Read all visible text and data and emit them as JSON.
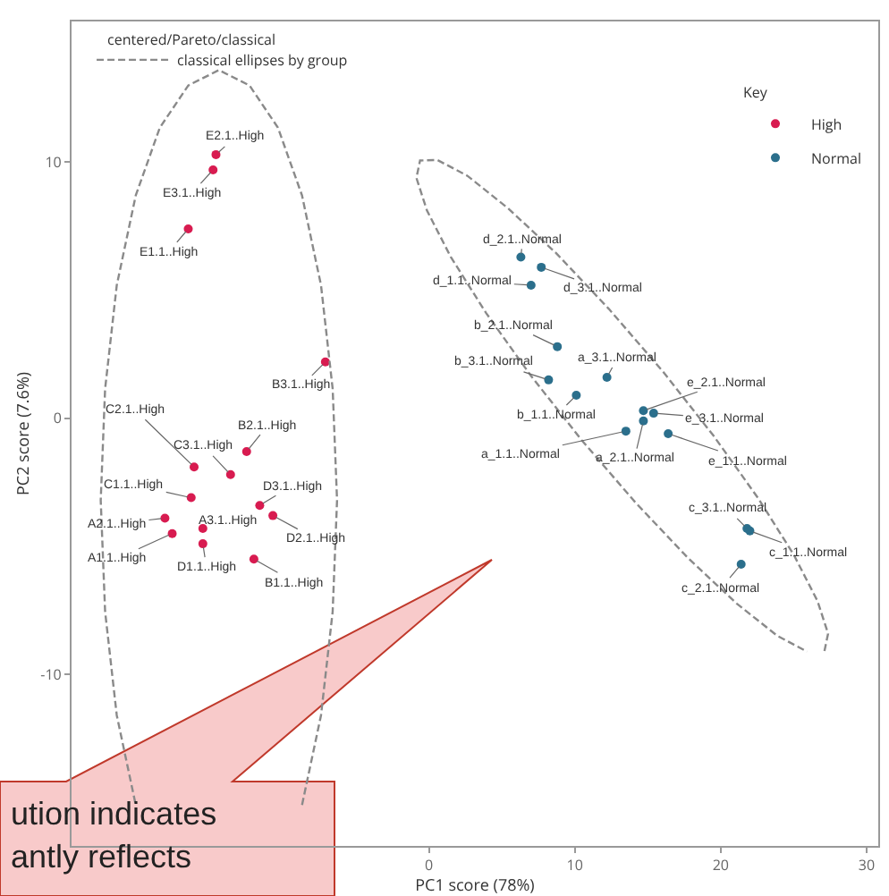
{
  "chart_data": {
    "type": "scatter",
    "title": "centered/Pareto/classical",
    "xlabel": "PC1 score (78%)",
    "ylabel": "PC2 score (7.6%)",
    "legend_title": "Key",
    "legend": "top right",
    "grid": false,
    "marker": "circle",
    "xlim": [
      -24.5,
      30.8
    ],
    "xticks": [
      0,
      10,
      20,
      30
    ],
    "ylim": [
      -16.7,
      15.5
    ],
    "yticks": [
      -10,
      0,
      10
    ],
    "series": [
      {
        "name": "High",
        "color": "#d81b50",
        "x": [
          -14.6,
          -14.8,
          -16.5,
          -7.1,
          -16.1,
          -12.5,
          -13.6,
          -16.3,
          -11.6,
          -18.1,
          -15.5,
          -10.7,
          -17.6,
          -15.5,
          -12.0
        ],
        "values": [
          10.3,
          9.7,
          7.4,
          2.2,
          -1.9,
          -1.3,
          -2.2,
          -3.1,
          -3.4,
          -3.9,
          -4.3,
          -3.8,
          -4.5,
          -4.9,
          -5.5
        ]
      },
      {
        "name": "Normal",
        "color": "#2b6f8c",
        "x": [
          6.3,
          7.7,
          7.0,
          8.8,
          8.2,
          12.2,
          10.1,
          14.7,
          15.4,
          13.5,
          14.7,
          16.4,
          21.8,
          22.0,
          21.4
        ],
        "values": [
          6.3,
          5.9,
          5.2,
          2.8,
          1.5,
          1.6,
          0.9,
          0.3,
          0.2,
          -0.5,
          -0.1,
          -0.6,
          -4.3,
          -4.4,
          -5.7
        ]
      },
      {
        "name": "classical ellipses by group",
        "type": "line",
        "line_style": "dashed",
        "marker": "none",
        "color": "#8a8a8a",
        "x": [
          -8.7,
          -7.4,
          -6.6,
          -6.3,
          -6.6,
          -7.4,
          -8.7,
          -10.35,
          -12.3,
          -14.4,
          -16.5,
          -18.45,
          -20.1,
          -21.4,
          -22.2,
          -22.5,
          -22.2,
          -21.4,
          -20.1
        ],
        "values": [
          -15.1,
          -11.6,
          -7.55,
          -3.2,
          1.15,
          5.2,
          8.7,
          11.35,
          13.0,
          13.6,
          13.0,
          11.35,
          8.7,
          5.2,
          1.15,
          -3.2,
          -7.55,
          -11.6,
          -15.1
        ]
      },
      {
        "type": "line",
        "line_style": "dashed",
        "marker": "none",
        "color": "#8a8a8a",
        "x": [
          27.11,
          27.36,
          26.64,
          25.01,
          22.58,
          19.52,
          16.02,
          12.34,
          8.72,
          5.41,
          2.64,
          0.58,
          -0.61,
          -0.86,
          -0.14,
          1.49,
          3.92,
          6.98,
          10.48,
          14.16,
          17.78,
          21.09,
          23.87,
          25.92
        ],
        "values": [
          -9.09,
          -8.41,
          -7.14,
          -5.33,
          -3.13,
          -0.69,
          1.84,
          4.27,
          6.45,
          8.21,
          9.47,
          10.09,
          10.07,
          9.39,
          8.12,
          6.31,
          4.11,
          1.67,
          -0.86,
          -3.29,
          -5.47,
          -7.23,
          -8.49,
          -9.11
        ]
      }
    ],
    "annotations": [
      "ution indicates\nantly reflects",
      {
        "text": "E2.1..High",
        "x": -14.6,
        "y": 10.3
      },
      {
        "text": "E3.1..High",
        "x": -14.8,
        "y": 9.7
      },
      {
        "text": "E1.1..High",
        "x": -16.5,
        "y": 7.4
      },
      {
        "text": "B3.1..High",
        "x": -7.1,
        "y": 2.2
      },
      {
        "text": "C2.1..High",
        "x": -16.1,
        "y": -1.9
      },
      {
        "text": "B2.1..High",
        "x": -12.5,
        "y": -1.3
      },
      {
        "text": "C3.1..High",
        "x": -13.6,
        "y": -2.2
      },
      {
        "text": "C1.1..High",
        "x": -16.3,
        "y": -3.1
      },
      {
        "text": "D3.1..High",
        "x": -11.6,
        "y": -3.4
      },
      {
        "text": "A2.1..High",
        "x": -18.1,
        "y": -3.9
      },
      {
        "text": "A3.1..High",
        "x": -15.5,
        "y": -4.3
      },
      {
        "text": "D2.1..High",
        "x": -10.7,
        "y": -3.8
      },
      {
        "text": "A1.1..High",
        "x": -17.6,
        "y": -4.5
      },
      {
        "text": "D1.1..High",
        "x": -15.5,
        "y": -4.9
      },
      {
        "text": "B1.1..High",
        "x": -12.0,
        "y": -5.5
      },
      {
        "text": "d_2.1..Normal",
        "x": 6.3,
        "y": 6.3
      },
      {
        "text": "d_3.1..Normal",
        "x": 7.7,
        "y": 5.9
      },
      {
        "text": "d_1.1..Normal",
        "x": 7.0,
        "y": 5.2
      },
      {
        "text": "b_2.1..Normal",
        "x": 8.8,
        "y": 2.8
      },
      {
        "text": "b_3.1..Normal",
        "x": 8.2,
        "y": 1.5
      },
      {
        "text": "a_3.1..Normal",
        "x": 12.2,
        "y": 1.6
      },
      {
        "text": "b_1.1..Normal",
        "x": 10.1,
        "y": 0.9
      },
      {
        "text": "e_2.1..Normal",
        "x": 14.7,
        "y": 0.3
      },
      {
        "text": "e_3.1..Normal",
        "x": 15.4,
        "y": 0.2
      },
      {
        "text": "a_1.1..Normal",
        "x": 13.5,
        "y": -0.5
      },
      {
        "text": "a_2.1..Normal",
        "x": 14.7,
        "y": -0.1
      },
      {
        "text": "e_1.1..Normal",
        "x": 16.4,
        "y": -0.6
      },
      {
        "text": "c_3.1..Normal",
        "x": 21.8,
        "y": -4.3
      },
      {
        "text": "c_1.1..Normal",
        "x": 22.0,
        "y": -4.4
      },
      {
        "text": "c_2.1..Normal",
        "x": 21.4,
        "y": -5.7
      }
    ]
  }
}
